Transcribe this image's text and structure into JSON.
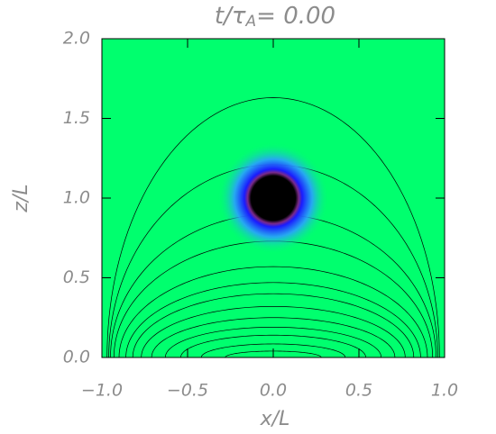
{
  "chart_data": {
    "type": "heatmap",
    "title": [
      "t/τ",
      "A",
      "= 0.00"
    ],
    "xlabel": "x/L",
    "ylabel": "z/L",
    "xlim": [
      -1,
      1
    ],
    "ylim": [
      0,
      2
    ],
    "xticks": [
      {
        "value": -1,
        "label": "−1.0"
      },
      {
        "value": -0.5,
        "label": "−0.5"
      },
      {
        "value": 0,
        "label": "0.0"
      },
      {
        "value": 0.5,
        "label": "0.5"
      },
      {
        "value": 1,
        "label": "1.0"
      }
    ],
    "yticks": [
      {
        "value": 0,
        "label": "0.0"
      },
      {
        "value": 0.5,
        "label": "0.5"
      },
      {
        "value": 1,
        "label": "1.0"
      },
      {
        "value": 1.5,
        "label": "1.5"
      },
      {
        "value": 2,
        "label": "2.0"
      }
    ],
    "background_color": "#00ff6e",
    "contour_color": "#000000",
    "blob": {
      "x": 0,
      "z": 1,
      "radius": 0.13
    },
    "contours": [
      {
        "apex": 1.63,
        "half_width": 0.97
      },
      {
        "apex": 1.21,
        "half_width": 0.96
      },
      {
        "apex": 0.9,
        "half_width": 0.95
      },
      {
        "apex": 0.73,
        "half_width": 0.93
      },
      {
        "apex": 0.57,
        "half_width": 0.9
      },
      {
        "apex": 0.47,
        "half_width": 0.86
      },
      {
        "apex": 0.4,
        "half_width": 0.82
      },
      {
        "apex": 0.32,
        "half_width": 0.77
      },
      {
        "apex": 0.25,
        "half_width": 0.71
      },
      {
        "apex": 0.19,
        "half_width": 0.63
      },
      {
        "apex": 0.14,
        "half_width": 0.54
      },
      {
        "apex": 0.085,
        "half_width": 0.42
      },
      {
        "apex": 0.04,
        "half_width": 0.28
      }
    ]
  }
}
